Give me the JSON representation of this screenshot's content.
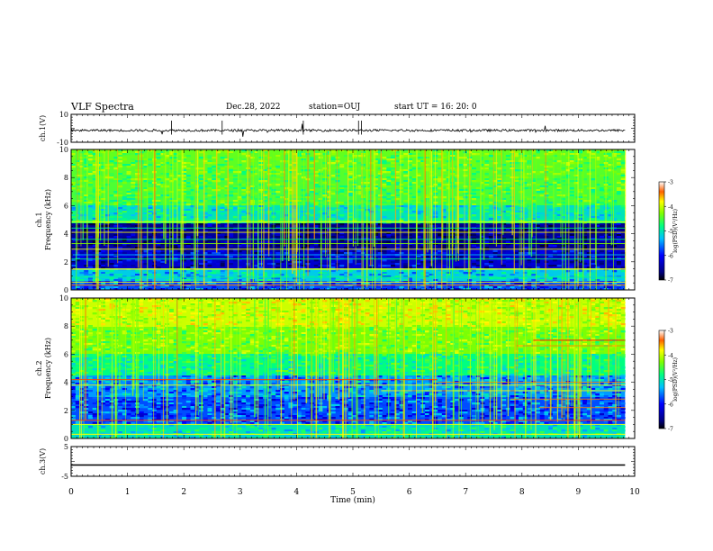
{
  "header": {
    "title": "VLF Spectra",
    "date": "Dec.28, 2022",
    "station": "station=OUJ",
    "start": "start  UT  =   16: 20: 0"
  },
  "chart_data": [
    {
      "type": "line",
      "name": "ch1-waveform",
      "ylabel": "ch.1(V)",
      "ylim": [
        -10,
        10
      ],
      "yticks": [
        "10",
        "-10"
      ],
      "xlim": [
        0,
        10
      ],
      "baseline_v": -1.5
    },
    {
      "type": "heatmap",
      "name": "ch1-spectrogram",
      "ylabel": "ch.1\nFrequency  (kHz)",
      "ylabel_line1": "ch.1",
      "ylabel_line2": "Frequency  (kHz)",
      "ylim": [
        0,
        10
      ],
      "yticks": [
        "0",
        "2",
        "4",
        "6",
        "8",
        "10"
      ],
      "xlim": [
        0,
        10
      ],
      "data_xlim": [
        0,
        9.83
      ],
      "colorbar": {
        "label": "log(PSD)(V²/Hz)",
        "range": [
          -7,
          -3
        ],
        "ticks": [
          "-3",
          "-4",
          "-5",
          "-6",
          "-7"
        ]
      }
    },
    {
      "type": "heatmap",
      "name": "ch2-spectrogram",
      "ylabel_line1": "ch.2",
      "ylabel_line2": "Frequency  (kHz)",
      "ylim": [
        0,
        10
      ],
      "yticks": [
        "0",
        "2",
        "4",
        "6",
        "8",
        "10"
      ],
      "xlim": [
        0,
        10
      ],
      "data_xlim": [
        0,
        9.83
      ],
      "colorbar": {
        "label": "log(PSD)(V²/Hz)",
        "range": [
          -7,
          -3
        ],
        "ticks": [
          "-3",
          "-4",
          "-5",
          "-6",
          "-7"
        ]
      }
    },
    {
      "type": "line",
      "name": "ch3-waveform",
      "ylabel": "ch.3(V)",
      "ylim": [
        -5,
        5
      ],
      "yticks": [
        "5",
        "-5"
      ],
      "xlim": [
        0,
        10
      ],
      "baseline_v": -1.2
    }
  ],
  "xaxis": {
    "label": "Time  (min)",
    "ticks": [
      "0",
      "1",
      "2",
      "3",
      "4",
      "5",
      "6",
      "7",
      "8",
      "9",
      "10"
    ]
  },
  "colors": {
    "colormap": [
      "#000080",
      "#0000ff",
      "#00c0ff",
      "#00ff80",
      "#80ff00",
      "#ffff00",
      "#ff8000",
      "#ff0000"
    ],
    "frame": "#000000"
  }
}
